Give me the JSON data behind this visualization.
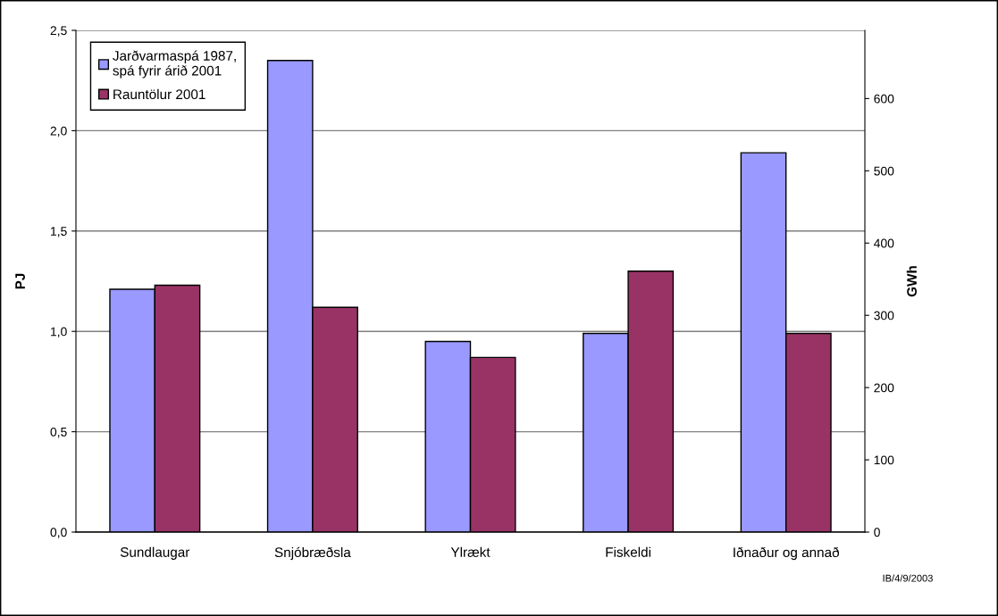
{
  "chart_data": {
    "type": "bar",
    "categories": [
      "Sundlaugar",
      "Snjóbræðsla",
      "Ylrækt",
      "Fiskeldi",
      "Iðnaður og annað"
    ],
    "series": [
      {
        "name": "Jarðvarmaspá 1987,\nspá fyrir árið 2001",
        "color": "#9999ff",
        "values": [
          1.21,
          2.35,
          0.95,
          0.99,
          1.89
        ]
      },
      {
        "name": "Rauntölur 2001",
        "color": "#993366",
        "values": [
          1.23,
          1.12,
          0.87,
          1.3,
          0.99
        ]
      }
    ],
    "ylabel": "PJ",
    "y2label": "GWh",
    "ylim": [
      0,
      2.5
    ],
    "yticks": [
      {
        "value": 0,
        "label": "0,0"
      },
      {
        "value": 0.5,
        "label": "0,5"
      },
      {
        "value": 1.0,
        "label": "1,0"
      },
      {
        "value": 1.5,
        "label": "1,5"
      },
      {
        "value": 2.0,
        "label": "2,0"
      },
      {
        "value": 2.5,
        "label": "2,5"
      }
    ],
    "y2lim": [
      0,
      694.4
    ],
    "y2ticks": [
      0,
      100,
      200,
      300,
      400,
      500,
      600
    ],
    "grid": "y",
    "legend": "top left",
    "annotations": [
      "IB/4/9/2003"
    ]
  }
}
